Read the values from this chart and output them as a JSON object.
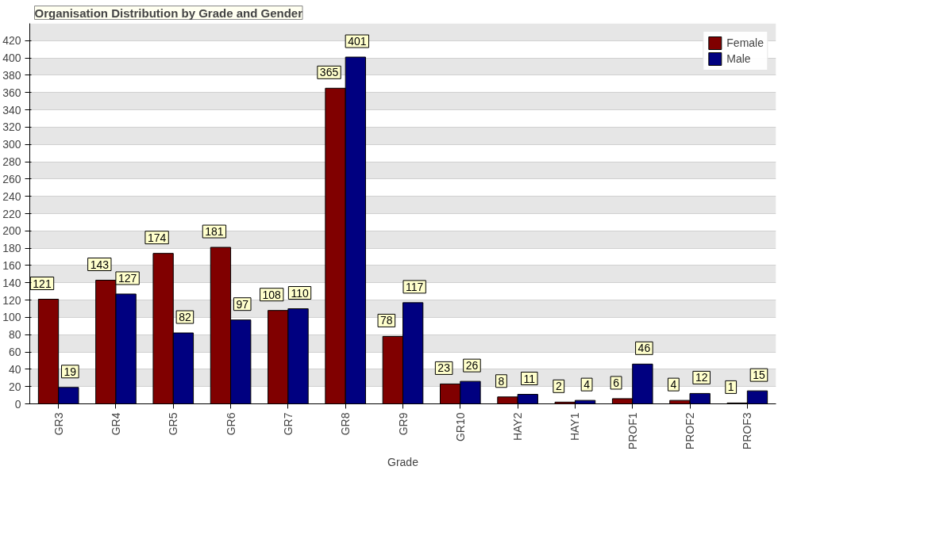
{
  "chart_data": {
    "type": "bar",
    "title": "Organisation Distribution by Grade and Gender",
    "xlabel": "Grade",
    "categories": [
      "GR3",
      "GR4",
      "GR5",
      "GR6",
      "GR7",
      "GR8",
      "GR9",
      "GR10",
      "HAY2",
      "HAY1",
      "PROF1",
      "PROF2",
      "PROF3"
    ],
    "series": [
      {
        "name": "Female",
        "color": "#800000",
        "values": [
          121,
          143,
          174,
          181,
          108,
          365,
          78,
          23,
          8,
          2,
          6,
          4,
          1
        ]
      },
      {
        "name": "Male",
        "color": "#000080",
        "values": [
          19,
          127,
          82,
          97,
          110,
          401,
          117,
          26,
          11,
          4,
          46,
          12,
          15
        ]
      }
    ],
    "ylim": [
      0,
      440
    ],
    "yticks": [
      0,
      20,
      40,
      60,
      80,
      100,
      120,
      140,
      160,
      180,
      200,
      220,
      240,
      260,
      280,
      300,
      320,
      340,
      360,
      380,
      400,
      420
    ],
    "grid": "y",
    "legend": "top right",
    "data_labels": true
  }
}
